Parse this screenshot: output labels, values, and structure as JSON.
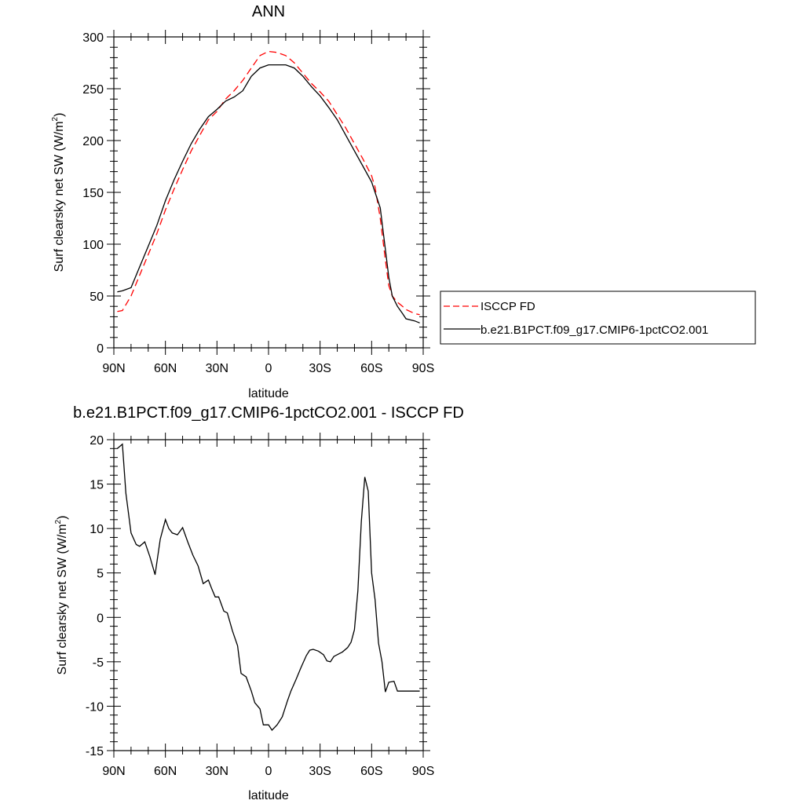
{
  "chart_data": [
    {
      "type": "line",
      "title": "ANN",
      "xlabel": "latitude",
      "ylabel": "Surf clearsky net SW (W/m",
      "ylabel_sup": "2",
      "ylabel_close": ")",
      "xlim": [
        90,
        -90
      ],
      "ylim": [
        0,
        300
      ],
      "x_ticks": [
        {
          "value": 90,
          "label": "90N"
        },
        {
          "value": 60,
          "label": "60N"
        },
        {
          "value": 30,
          "label": "30N"
        },
        {
          "value": 0,
          "label": "0"
        },
        {
          "value": -30,
          "label": "30S"
        },
        {
          "value": -60,
          "label": "60S"
        },
        {
          "value": -90,
          "label": "90S"
        }
      ],
      "y_ticks": [
        0,
        50,
        100,
        150,
        200,
        250,
        300
      ],
      "legend": "right",
      "series": [
        {
          "name": "ISCCP FD",
          "color": "#ff0000",
          "dash": "dashed",
          "x": [
            88,
            85,
            80,
            75,
            70,
            65,
            60,
            55,
            50,
            45,
            40,
            35,
            30,
            25,
            20,
            15,
            10,
            5,
            0,
            -5,
            -10,
            -15,
            -20,
            -25,
            -30,
            -35,
            -40,
            -45,
            -50,
            -55,
            -60,
            -62,
            -65,
            -68,
            -70,
            -72,
            -75,
            -78,
            -80,
            -85,
            -88
          ],
          "y": [
            35,
            36,
            50,
            70,
            90,
            110,
            133,
            153,
            172,
            190,
            205,
            220,
            228,
            240,
            248,
            258,
            270,
            282,
            286,
            285,
            282,
            275,
            265,
            255,
            247,
            238,
            225,
            212,
            197,
            182,
            166,
            155,
            125,
            85,
            60,
            50,
            44,
            40,
            37,
            33,
            32
          ]
        },
        {
          "name": "b.e21.B1PCT.f09_g17.CMIP6-1pctCO2.001",
          "color": "#000000",
          "dash": "solid",
          "x": [
            88,
            85,
            80,
            75,
            70,
            65,
            60,
            55,
            50,
            45,
            40,
            35,
            30,
            25,
            20,
            15,
            10,
            5,
            0,
            -5,
            -10,
            -15,
            -20,
            -25,
            -30,
            -35,
            -40,
            -45,
            -50,
            -55,
            -60,
            -62,
            -65,
            -68,
            -70,
            -72,
            -75,
            -78,
            -80,
            -85,
            -88
          ],
          "y": [
            54,
            55,
            58,
            78,
            98,
            118,
            142,
            162,
            180,
            197,
            211,
            223,
            230,
            238,
            242,
            248,
            262,
            270,
            273,
            273,
            273,
            270,
            262,
            252,
            243,
            232,
            220,
            205,
            190,
            175,
            160,
            150,
            135,
            95,
            68,
            50,
            40,
            33,
            28,
            26,
            24
          ]
        }
      ]
    },
    {
      "type": "line",
      "title": "b.e21.B1PCT.f09_g17.CMIP6-1pctCO2.001 - ISCCP FD",
      "xlabel": "latitude",
      "ylabel": "Surf clearsky net SW (W/m",
      "ylabel_sup": "2",
      "ylabel_close": ")",
      "xlim": [
        90,
        -90
      ],
      "ylim": [
        -15,
        20
      ],
      "x_ticks": [
        {
          "value": 90,
          "label": "90N"
        },
        {
          "value": 60,
          "label": "60N"
        },
        {
          "value": 30,
          "label": "30N"
        },
        {
          "value": 0,
          "label": "0"
        },
        {
          "value": -30,
          "label": "30S"
        },
        {
          "value": -60,
          "label": "60S"
        },
        {
          "value": -90,
          "label": "90S"
        }
      ],
      "y_ticks": [
        -15,
        -10,
        -5,
        0,
        5,
        10,
        15,
        20
      ],
      "series": [
        {
          "color": "#000000",
          "dash": "solid",
          "x": [
            88,
            85,
            83,
            80,
            77,
            75,
            72,
            69,
            66,
            63,
            60,
            58,
            56,
            53,
            50,
            47,
            44,
            41,
            38,
            35,
            33,
            31,
            29,
            26,
            24,
            21,
            18,
            16,
            13,
            10,
            8,
            5,
            3,
            0,
            -2,
            -5,
            -8,
            -11,
            -13,
            -16,
            -19,
            -22,
            -24,
            -26,
            -29,
            -32,
            -34,
            -36,
            -38,
            -41,
            -43,
            -46,
            -48,
            -50,
            -52,
            -54,
            -56,
            -58,
            -60,
            -62,
            -64,
            -66,
            -68,
            -70,
            -73,
            -75,
            -78,
            -80,
            -82,
            -85,
            -88
          ],
          "y": [
            19,
            19.5,
            14,
            9.5,
            8.2,
            8,
            8.5,
            6.8,
            4.8,
            8.8,
            11,
            10,
            9.5,
            9.3,
            10.1,
            8.5,
            7,
            5.8,
            3.8,
            4.2,
            3.2,
            2.3,
            2.3,
            0.7,
            0.5,
            -1.5,
            -3.2,
            -6.3,
            -6.7,
            -8.3,
            -9.6,
            -10.3,
            -12.1,
            -12.1,
            -12.7,
            -12.1,
            -11.2,
            -9.4,
            -8.3,
            -7,
            -5.6,
            -4.3,
            -3.7,
            -3.6,
            -3.8,
            -4.2,
            -4.9,
            -5,
            -4.4,
            -4.1,
            -3.9,
            -3.4,
            -2.8,
            -1.4,
            3,
            10.8,
            15.8,
            14.2,
            5,
            2,
            -2.9,
            -5,
            -8.4,
            -7.3,
            -7.2,
            -8.3,
            -8.3,
            -8.3,
            -8.3,
            -8.3,
            -8.3
          ]
        }
      ]
    }
  ]
}
